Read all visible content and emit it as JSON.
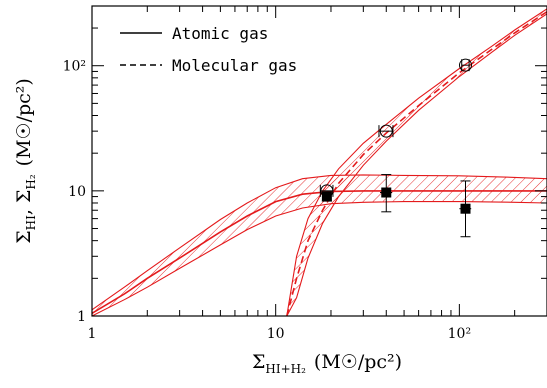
{
  "chart_data": {
    "type": "line",
    "xscale": "log",
    "yscale": "log",
    "xlim": [
      1,
      300
    ],
    "ylim": [
      1,
      300
    ],
    "x_ticks": [
      {
        "value": 1,
        "label": "1"
      },
      {
        "value": 10,
        "label": "10"
      },
      {
        "value": 100,
        "label": "10²"
      }
    ],
    "y_ticks": [
      {
        "value": 1,
        "label": "1"
      },
      {
        "value": 10,
        "label": "10"
      },
      {
        "value": 100,
        "label": "10²"
      }
    ],
    "xlabel": {
      "main": "Σ",
      "sub": "HI+H₂",
      "units": "(M☉/pc²)"
    },
    "ylabel": {
      "main1": "Σ",
      "sub1": "HI",
      "sep": ",  ",
      "main2": "Σ",
      "sub2": "H₂",
      "units": "(M☉/pc²)"
    },
    "legend": {
      "placement": "top-left",
      "entries": [
        {
          "label": "Atomic gas",
          "linestyle": "solid"
        },
        {
          "label": "Molecular gas",
          "linestyle": "dashed"
        }
      ]
    },
    "colors": {
      "model": "#e41a1c",
      "points": "#000000"
    },
    "series": [
      {
        "name": "Atomic gas",
        "kind": "model-line",
        "linestyle": "solid",
        "x": [
          1,
          1.5,
          2,
          3,
          5,
          7,
          10,
          14,
          20,
          30,
          50,
          100,
          200,
          300
        ],
        "y": [
          1.05,
          1.5,
          2.0,
          2.9,
          4.7,
          6.3,
          8.2,
          9.4,
          9.9,
          10.0,
          10.0,
          10.0,
          10.0,
          10.0
        ],
        "band_low": [
          1.0,
          1.35,
          1.7,
          2.4,
          3.7,
          4.9,
          6.3,
          7.3,
          7.9,
          8.1,
          8.2,
          8.2,
          8.1,
          8.0
        ],
        "band_high": [
          1.12,
          1.7,
          2.3,
          3.5,
          5.9,
          8.0,
          10.6,
          12.5,
          13.3,
          13.4,
          13.3,
          13.2,
          12.8,
          12.5
        ]
      },
      {
        "name": "Molecular gas",
        "kind": "model-line",
        "linestyle": "dashed",
        "x": [
          11.5,
          13,
          15,
          18,
          22,
          30,
          40,
          60,
          100,
          150,
          200,
          300
        ],
        "y": [
          1.0,
          2.0,
          4.0,
          7.0,
          11.5,
          19.5,
          29.0,
          48.0,
          88.0,
          135.0,
          183.0,
          270.0
        ],
        "band_low": [
          1.0,
          1.4,
          2.9,
          5.5,
          9.0,
          16.0,
          25.0,
          44.0,
          82.0,
          128.0,
          175.0,
          260.0
        ],
        "band_high": [
          1.0,
          3.0,
          6.0,
          10.0,
          15.0,
          24.0,
          34.0,
          55.0,
          95.0,
          143.0,
          193.0,
          285.0
        ]
      },
      {
        "name": "Atomic gas",
        "kind": "points",
        "marker": "filled-square",
        "x": [
          19,
          40,
          108
        ],
        "y": [
          9.0,
          9.7,
          7.2
        ],
        "yerr_low": [
          8.3,
          6.8,
          4.3
        ],
        "yerr_high": [
          9.8,
          13.5,
          12.0
        ],
        "xerr_low": [
          18.0,
          37.0,
          100.0
        ],
        "xerr_high": [
          20.0,
          43.0,
          116.0
        ]
      },
      {
        "name": "Molecular gas",
        "kind": "points",
        "marker": "open-circle",
        "x": [
          19,
          40,
          108
        ],
        "y": [
          10.0,
          30.0,
          101.0
        ],
        "xerr_low": [
          17.5,
          36.5,
          103.0
        ],
        "xerr_high": [
          20.5,
          43.5,
          113.0
        ]
      }
    ]
  }
}
